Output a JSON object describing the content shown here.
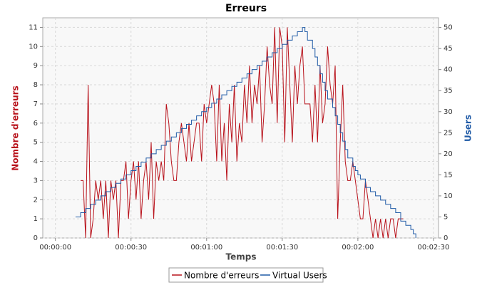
{
  "chart_data": {
    "type": "line",
    "title": "Erreurs",
    "x_label": "Temps",
    "y_label": "Nombre d'erreurs",
    "y2_label": "Users",
    "xlim": [
      -5,
      152
    ],
    "xticks": [
      {
        "value": 0,
        "label": "00:00:00"
      },
      {
        "value": 30,
        "label": "00:00:30"
      },
      {
        "value": 60,
        "label": "00:01:00"
      },
      {
        "value": 90,
        "label": "00:01:30"
      },
      {
        "value": 120,
        "label": "00:02:00"
      },
      {
        "value": 150,
        "label": "00:02:30"
      }
    ],
    "ylim": [
      0,
      11.5
    ],
    "yticks": [
      0,
      1,
      2,
      3,
      4,
      5,
      6,
      7,
      8,
      9,
      10,
      11
    ],
    "y2lim": [
      0,
      52.3
    ],
    "y2ticks": [
      0,
      5,
      10,
      15,
      20,
      25,
      30,
      35,
      40,
      45,
      50
    ],
    "grid": true,
    "series": [
      {
        "name": "Nombre d'erreurs",
        "color": "#b8121b",
        "x": [
          10,
          11,
          12,
          13,
          14,
          15,
          16,
          17,
          18,
          19,
          20,
          21,
          22,
          23,
          24,
          25,
          26,
          27,
          28,
          29,
          30,
          31,
          32,
          33,
          34,
          35,
          36,
          37,
          38,
          39,
          40,
          41,
          42,
          43,
          44,
          45,
          46,
          47,
          48,
          49,
          50,
          51,
          52,
          53,
          54,
          55,
          56,
          57,
          58,
          59,
          60,
          61,
          62,
          63,
          64,
          65,
          66,
          67,
          68,
          69,
          70,
          71,
          72,
          73,
          74,
          75,
          76,
          77,
          78,
          79,
          80,
          81,
          82,
          83,
          84,
          85,
          86,
          87,
          88,
          89,
          90,
          91,
          92,
          93,
          94,
          95,
          96,
          97,
          98,
          99,
          100,
          101,
          102,
          103,
          104,
          105,
          106,
          107,
          108,
          109,
          110,
          111,
          112,
          113,
          114,
          115,
          116,
          117,
          118,
          119,
          120,
          121,
          122,
          123,
          124,
          125,
          126,
          127,
          128,
          129,
          130,
          131,
          132,
          133,
          134,
          135,
          136,
          137,
          138
        ],
        "values": [
          3,
          3,
          0,
          8,
          0,
          1,
          3,
          2,
          3,
          1,
          3,
          0,
          3,
          2,
          3,
          0,
          3,
          3,
          4,
          1,
          3,
          4,
          2,
          4,
          1,
          3,
          4,
          2,
          5,
          1,
          4,
          3,
          4,
          3,
          7,
          6,
          4,
          3,
          3,
          5,
          6,
          5,
          4,
          6,
          4,
          5,
          6,
          6,
          4,
          7,
          6,
          7,
          8,
          7,
          4,
          8,
          4,
          6,
          3,
          7,
          5,
          8,
          4,
          6,
          5,
          8,
          6,
          9,
          6,
          8,
          7,
          9,
          5,
          7,
          10,
          8,
          7,
          11,
          6,
          11,
          10,
          5,
          11,
          8,
          5,
          9,
          7,
          9,
          10,
          7,
          7,
          7,
          5,
          8,
          5,
          9,
          6,
          7,
          10,
          8,
          7,
          9,
          1,
          5,
          8,
          4,
          3,
          3,
          4,
          3,
          2,
          1,
          1,
          3,
          2,
          1,
          0,
          1,
          0,
          1,
          0,
          1,
          0,
          1,
          1,
          0,
          1,
          1,
          1
        ]
      },
      {
        "name": "Virtual Users",
        "color": "#1f5aa6",
        "axis": "y2",
        "step": true,
        "x": [
          8,
          10,
          12,
          14,
          16,
          18,
          20,
          22,
          24,
          26,
          28,
          30,
          32,
          34,
          36,
          38,
          40,
          42,
          44,
          46,
          48,
          50,
          52,
          54,
          56,
          58,
          60,
          62,
          64,
          66,
          68,
          70,
          72,
          74,
          76,
          78,
          80,
          82,
          84,
          86,
          88,
          90,
          92,
          94,
          96,
          98,
          99,
          100,
          102,
          103,
          104,
          105,
          106,
          107,
          108,
          110,
          111,
          112,
          113,
          114,
          115,
          116,
          118,
          119,
          120,
          121,
          123,
          125,
          127,
          129,
          131,
          133,
          135,
          137,
          139,
          141,
          142,
          143
        ],
        "values": [
          5,
          6,
          7,
          8,
          9,
          10,
          11,
          12,
          13,
          14,
          15,
          16,
          17,
          18,
          19,
          20,
          21,
          22,
          23,
          24,
          25,
          26,
          27,
          28,
          29,
          30,
          31,
          32,
          33,
          34,
          35,
          36,
          37,
          38,
          39,
          40,
          41,
          42,
          43,
          44,
          45,
          46,
          47,
          48,
          49,
          50,
          49,
          47,
          45,
          43,
          41,
          39,
          37,
          35,
          33,
          31,
          29,
          27,
          25,
          23,
          21,
          19,
          17,
          16,
          15,
          14,
          12,
          11,
          10,
          9,
          8,
          7,
          6,
          4,
          3,
          2,
          1,
          0
        ]
      }
    ]
  }
}
